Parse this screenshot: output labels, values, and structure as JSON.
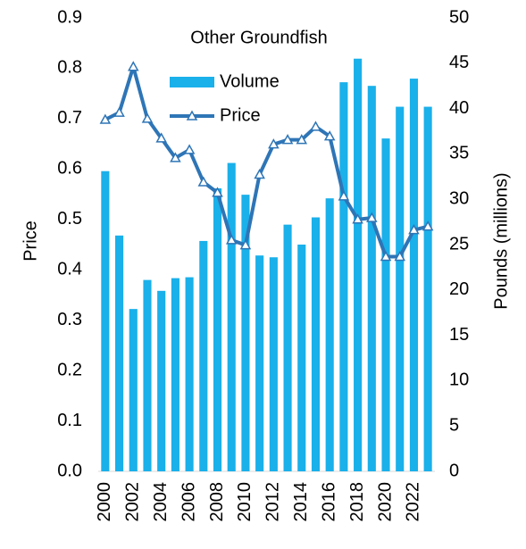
{
  "chart_data": {
    "type": "bar_line",
    "title": "Other Groundfish",
    "y_label": "Price",
    "y2_label": "Pounds (millions)",
    "categories": [
      "2000",
      null,
      "2002",
      null,
      "2004",
      null,
      "2006",
      null,
      "2008",
      null,
      "2010",
      null,
      "2012",
      null,
      "2014",
      null,
      "2016",
      null,
      "2018",
      null,
      "2020",
      null,
      "2022",
      null
    ],
    "series": [
      {
        "name": "Volume",
        "type": "bar",
        "axis": "y2",
        "color": "#1ab0ea",
        "values": [
          33.1,
          26.0,
          17.9,
          21.1,
          19.9,
          21.3,
          21.4,
          25.4,
          31.2,
          34.0,
          30.5,
          23.8,
          23.6,
          27.2,
          25.0,
          28.0,
          30.1,
          42.9,
          45.5,
          42.5,
          36.7,
          40.2,
          43.3,
          40.2
        ]
      },
      {
        "name": "Price",
        "type": "line",
        "color": "#2e75b6",
        "values": [
          0.698,
          0.712,
          0.803,
          0.7,
          0.661,
          0.622,
          0.638,
          0.574,
          0.553,
          0.459,
          0.449,
          0.589,
          0.649,
          0.658,
          0.658,
          0.684,
          0.665,
          0.546,
          0.5,
          0.503,
          0.426,
          0.426,
          0.479,
          0.486
        ]
      }
    ],
    "ylim": [
      0,
      0.9
    ],
    "yticks": [
      {
        "value": 0,
        "label": "0.0"
      },
      0.1,
      0.2,
      0.3,
      0.4,
      0.5,
      0.6,
      0.7,
      0.8,
      0.9
    ],
    "y2lim": [
      0,
      50
    ],
    "y2ticks": [
      0,
      5,
      10,
      15,
      20,
      25,
      30,
      35,
      40,
      45,
      50
    ],
    "grid": false,
    "legend": "top"
  }
}
